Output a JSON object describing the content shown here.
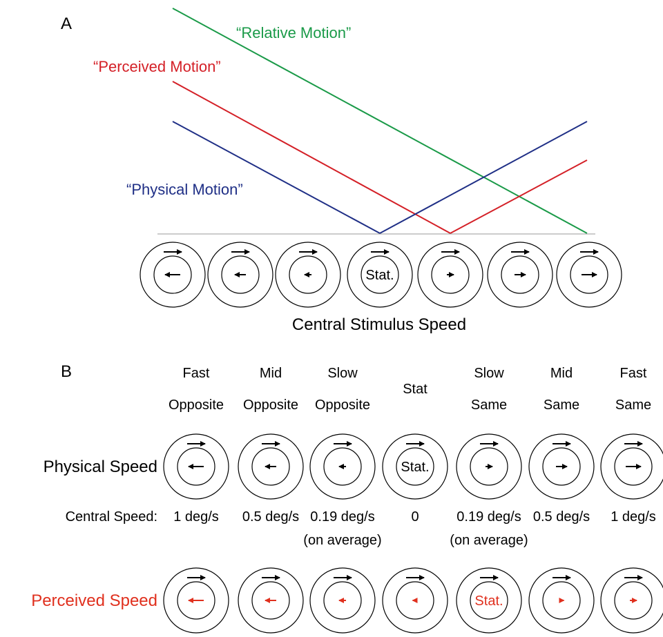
{
  "panel_a": {
    "label": "A",
    "lines": [
      {
        "label": "“Relative Motion”",
        "color": "#1a9a48"
      },
      {
        "label": "“Perceived Motion”",
        "color": "#d42027"
      },
      {
        "label": "“Physical Motion”",
        "color": "#1f2f86"
      }
    ],
    "stimuli": [
      {
        "center_arrow": "left",
        "center_size": "large"
      },
      {
        "center_arrow": "left",
        "center_size": "medium"
      },
      {
        "center_arrow": "left",
        "center_size": "small"
      },
      {
        "center_text": "Stat."
      },
      {
        "center_arrow": "right",
        "center_size": "small"
      },
      {
        "center_arrow": "right",
        "center_size": "medium"
      },
      {
        "center_arrow": "right",
        "center_size": "large"
      }
    ],
    "xlabel": "Central Stimulus Speed"
  },
  "panel_b": {
    "label": "B",
    "conditions": [
      {
        "line1": "Fast",
        "line2": "Opposite"
      },
      {
        "line1": "Mid",
        "line2": "Opposite"
      },
      {
        "line1": "Slow",
        "line2": "Opposite"
      },
      {
        "line1": "Stat",
        "line2": ""
      },
      {
        "line1": "Slow",
        "line2": "Same"
      },
      {
        "line1": "Mid",
        "line2": "Same"
      },
      {
        "line1": "Fast",
        "line2": "Same"
      }
    ],
    "physical_row_label": "Physical Speed",
    "physical_color": "#000000",
    "physical_centers": [
      {
        "arrow": "left",
        "size": "large"
      },
      {
        "arrow": "left",
        "size": "medium"
      },
      {
        "arrow": "left",
        "size": "small"
      },
      {
        "text": "Stat."
      },
      {
        "arrow": "right",
        "size": "small"
      },
      {
        "arrow": "right",
        "size": "medium"
      },
      {
        "arrow": "right",
        "size": "large"
      }
    ],
    "speeds_label": "Central Speed:",
    "speeds": [
      "1 deg/s",
      "0.5 deg/s",
      "0.19 deg/s",
      "0",
      "0.19 deg/s",
      "0.5 deg/s",
      "1 deg/s"
    ],
    "speed_notes": [
      "",
      "",
      "(on average)",
      "",
      "(on average)",
      "",
      ""
    ],
    "perceived_row_label": "Perceived Speed",
    "perceived_color": "#e0301e",
    "perceived_centers": [
      {
        "arrow": "left",
        "size": "large"
      },
      {
        "arrow": "left",
        "size": "medium"
      },
      {
        "arrow": "left",
        "size": "small"
      },
      {
        "arrow": "left",
        "size": "tiny"
      },
      {
        "text": "Stat."
      },
      {
        "arrow": "right",
        "size": "tiny"
      },
      {
        "arrow": "right",
        "size": "small"
      }
    ]
  }
}
